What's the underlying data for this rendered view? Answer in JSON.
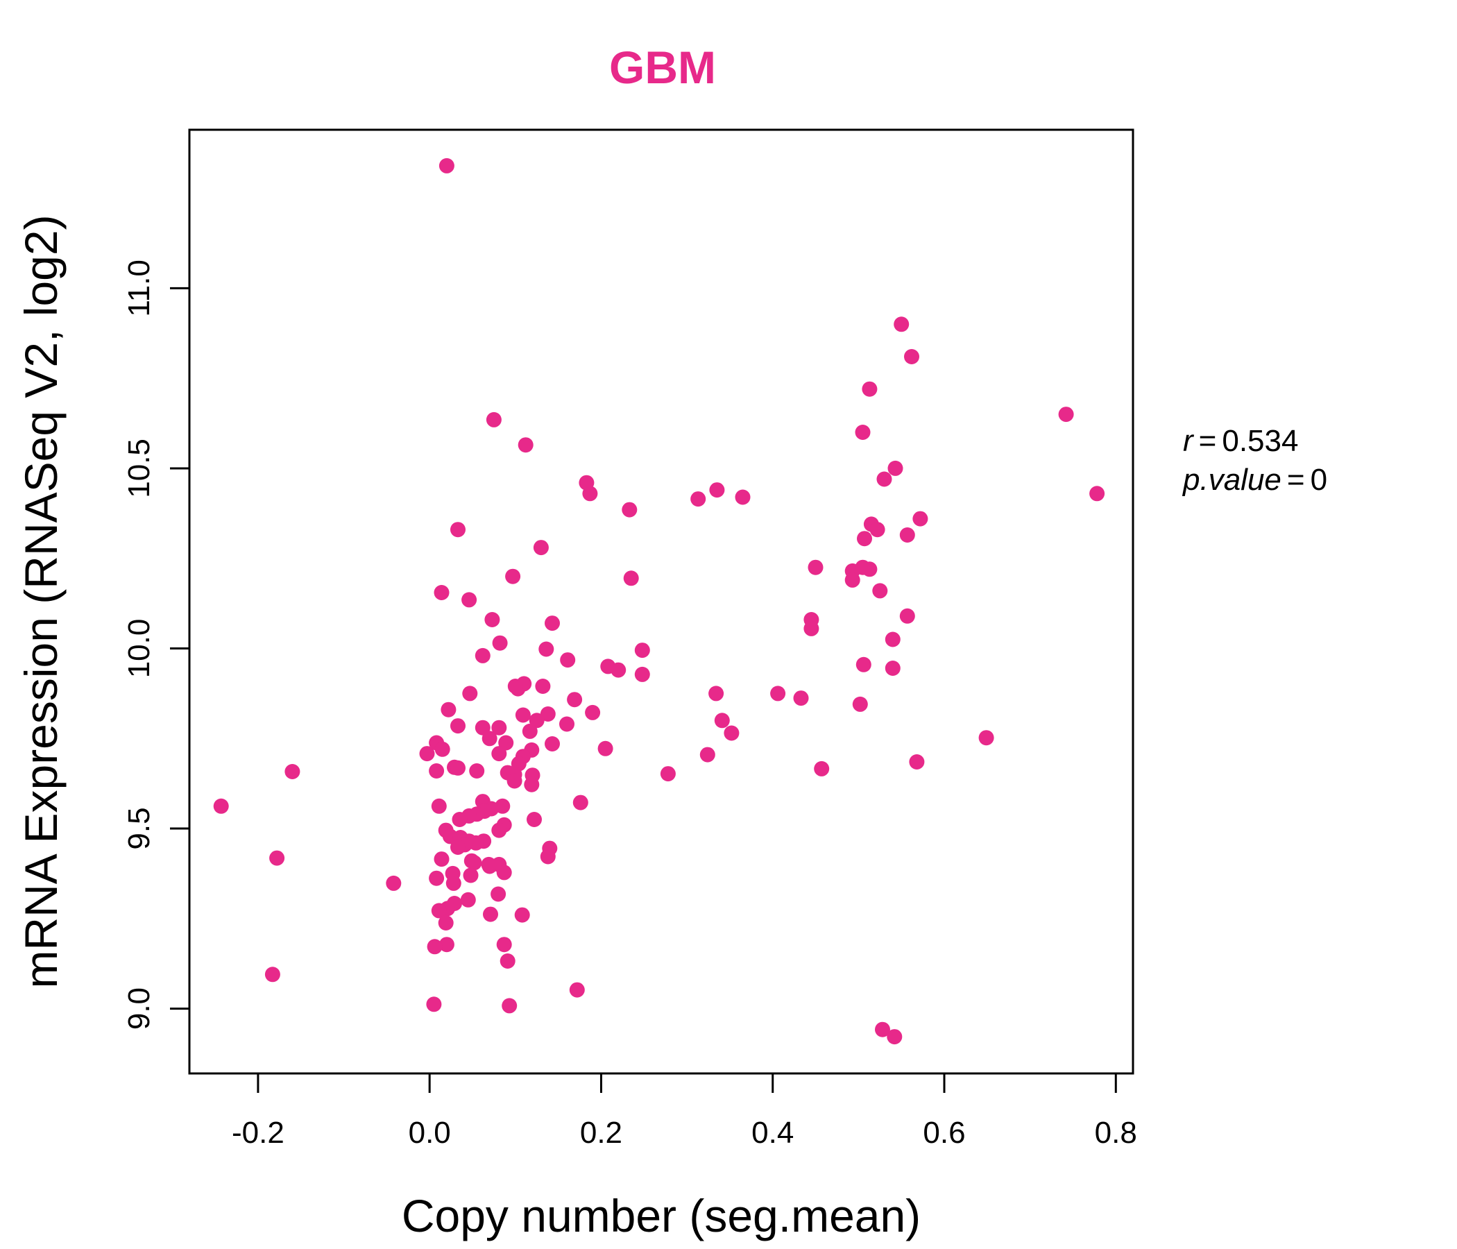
{
  "colors": {
    "accent": "#e7298a",
    "axis": "#000000",
    "background": "#ffffff"
  },
  "chart_data": {
    "type": "scatter",
    "title": "GBM",
    "xlabel": "Copy number (seg.mean)",
    "ylabel": "mRNA Expression (RNASeq V2, log2)",
    "xlim": [
      -0.28,
      0.82
    ],
    "ylim": [
      8.82,
      11.44
    ],
    "x_ticks": [
      "-0.2",
      "0.0",
      "0.2",
      "0.4",
      "0.6",
      "0.8"
    ],
    "y_ticks": [
      "9.0",
      "9.5",
      "10.0",
      "10.5",
      "11.0"
    ],
    "grid": false,
    "annotation": {
      "r_label": "r",
      "r_value": "0.534",
      "p_label": "p.value",
      "p_value": "0"
    },
    "series": [
      {
        "color": "#e7298a",
        "points": [
          [
            0.02,
            11.34
          ],
          [
            0.55,
            10.9
          ],
          [
            0.562,
            10.81
          ],
          [
            0.513,
            10.72
          ],
          [
            0.075,
            10.635
          ],
          [
            0.742,
            10.65
          ],
          [
            0.112,
            10.565
          ],
          [
            0.505,
            10.6
          ],
          [
            0.543,
            10.5
          ],
          [
            0.53,
            10.47
          ],
          [
            0.183,
            10.46
          ],
          [
            0.778,
            10.43
          ],
          [
            0.187,
            10.43
          ],
          [
            0.313,
            10.415
          ],
          [
            0.335,
            10.44
          ],
          [
            0.365,
            10.42
          ],
          [
            0.233,
            10.385
          ],
          [
            0.572,
            10.36
          ],
          [
            0.515,
            10.345
          ],
          [
            0.522,
            10.33
          ],
          [
            0.557,
            10.315
          ],
          [
            0.033,
            10.33
          ],
          [
            0.507,
            10.305
          ],
          [
            0.13,
            10.28
          ],
          [
            0.45,
            10.225
          ],
          [
            0.493,
            10.215
          ],
          [
            0.505,
            10.225
          ],
          [
            0.513,
            10.22
          ],
          [
            0.097,
            10.2
          ],
          [
            0.235,
            10.195
          ],
          [
            0.493,
            10.19
          ],
          [
            0.525,
            10.16
          ],
          [
            0.014,
            10.155
          ],
          [
            0.046,
            10.135
          ],
          [
            0.445,
            10.08
          ],
          [
            0.073,
            10.08
          ],
          [
            0.143,
            10.07
          ],
          [
            0.557,
            10.09
          ],
          [
            0.445,
            10.055
          ],
          [
            0.082,
            10.015
          ],
          [
            0.54,
            10.025
          ],
          [
            0.136,
            9.998
          ],
          [
            0.248,
            9.995
          ],
          [
            0.062,
            9.98
          ],
          [
            0.161,
            9.968
          ],
          [
            0.208,
            9.95
          ],
          [
            0.22,
            9.94
          ],
          [
            0.248,
            9.928
          ],
          [
            0.506,
            9.955
          ],
          [
            0.54,
            9.945
          ],
          [
            0.11,
            9.902
          ],
          [
            0.132,
            9.895
          ],
          [
            0.103,
            9.888
          ],
          [
            0.1,
            9.895
          ],
          [
            0.047,
            9.875
          ],
          [
            0.334,
            9.875
          ],
          [
            0.406,
            9.875
          ],
          [
            0.433,
            9.862
          ],
          [
            0.169,
            9.858
          ],
          [
            0.502,
            9.845
          ],
          [
            0.022,
            9.83
          ],
          [
            0.19,
            9.822
          ],
          [
            0.109,
            9.815
          ],
          [
            0.138,
            9.818
          ],
          [
            0.125,
            9.8
          ],
          [
            0.341,
            9.8
          ],
          [
            0.033,
            9.785
          ],
          [
            0.16,
            9.79
          ],
          [
            0.062,
            9.78
          ],
          [
            0.081,
            9.78
          ],
          [
            0.117,
            9.77
          ],
          [
            0.352,
            9.765
          ],
          [
            0.07,
            9.75
          ],
          [
            0.649,
            9.752
          ],
          [
            0.008,
            9.738
          ],
          [
            0.089,
            9.738
          ],
          [
            0.143,
            9.735
          ],
          [
            0.205,
            9.722
          ],
          [
            0.015,
            9.72
          ],
          [
            0.119,
            9.718
          ],
          [
            0.324,
            9.705
          ],
          [
            -0.003,
            9.708
          ],
          [
            0.109,
            9.7
          ],
          [
            0.081,
            9.708
          ],
          [
            0.568,
            9.685
          ],
          [
            0.104,
            9.68
          ],
          [
            0.029,
            9.67
          ],
          [
            0.033,
            9.668
          ],
          [
            0.055,
            9.66
          ],
          [
            0.008,
            9.66
          ],
          [
            -0.16,
            9.658
          ],
          [
            0.457,
            9.666
          ],
          [
            0.091,
            9.655
          ],
          [
            0.099,
            9.65
          ],
          [
            0.12,
            9.648
          ],
          [
            0.278,
            9.652
          ],
          [
            0.099,
            9.632
          ],
          [
            0.119,
            9.622
          ],
          [
            0.062,
            9.575
          ],
          [
            0.176,
            9.572
          ],
          [
            0.085,
            9.562
          ],
          [
            0.011,
            9.562
          ],
          [
            -0.243,
            9.562
          ],
          [
            0.072,
            9.555
          ],
          [
            0.064,
            9.548
          ],
          [
            0.055,
            9.54
          ],
          [
            0.046,
            9.535
          ],
          [
            0.035,
            9.525
          ],
          [
            0.122,
            9.525
          ],
          [
            0.087,
            9.51
          ],
          [
            0.081,
            9.495
          ],
          [
            0.019,
            9.495
          ],
          [
            0.024,
            9.478
          ],
          [
            0.036,
            9.475
          ],
          [
            0.046,
            9.465
          ],
          [
            0.063,
            9.465
          ],
          [
            0.054,
            9.46
          ],
          [
            0.041,
            9.455
          ],
          [
            0.033,
            9.448
          ],
          [
            0.14,
            9.445
          ],
          [
            0.138,
            9.422
          ],
          [
            0.049,
            9.41
          ],
          [
            0.014,
            9.415
          ],
          [
            0.052,
            9.405
          ],
          [
            -0.178,
            9.418
          ],
          [
            0.069,
            9.4
          ],
          [
            0.081,
            9.4
          ],
          [
            0.07,
            9.395
          ],
          [
            0.087,
            9.378
          ],
          [
            0.027,
            9.375
          ],
          [
            0.048,
            9.37
          ],
          [
            0.008,
            9.362
          ],
          [
            0.028,
            9.348
          ],
          [
            -0.042,
            9.348
          ],
          [
            0.08,
            9.318
          ],
          [
            0.045,
            9.302
          ],
          [
            0.029,
            9.292
          ],
          [
            0.021,
            9.278
          ],
          [
            0.011,
            9.272
          ],
          [
            0.071,
            9.262
          ],
          [
            0.108,
            9.26
          ],
          [
            0.019,
            9.238
          ],
          [
            0.02,
            9.178
          ],
          [
            0.006,
            9.172
          ],
          [
            0.087,
            9.178
          ],
          [
            0.091,
            9.132
          ],
          [
            -0.183,
            9.095
          ],
          [
            0.172,
            9.052
          ],
          [
            0.005,
            9.012
          ],
          [
            0.093,
            9.008
          ],
          [
            0.528,
            8.942
          ],
          [
            0.542,
            8.922
          ]
        ]
      }
    ]
  }
}
